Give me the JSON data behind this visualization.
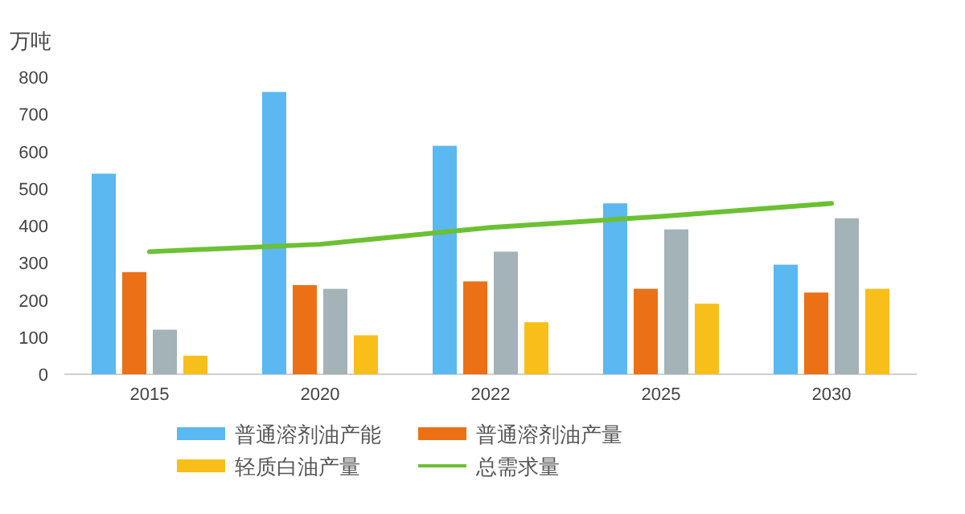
{
  "chart_data": {
    "type": "bar",
    "ylabel": "万吨",
    "categories": [
      "2015",
      "2020",
      "2022",
      "2025",
      "2030"
    ],
    "series": [
      {
        "name": "普通溶剂油产能",
        "color": "#5bb8f0",
        "values": [
          540,
          760,
          615,
          460,
          295
        ]
      },
      {
        "name": "普通溶剂油产量",
        "color": "#ec7016",
        "values": [
          275,
          240,
          250,
          230,
          220
        ]
      },
      {
        "color": "#a3b3b8",
        "values": [
          120,
          230,
          330,
          390,
          420
        ]
      },
      {
        "name": "轻质白油产量",
        "color": "#f8bf1a",
        "values": [
          50,
          105,
          140,
          190,
          230
        ]
      },
      {
        "name": "总需求量",
        "type": "line",
        "color": "#6cc033",
        "values": [
          330,
          350,
          395,
          425,
          460
        ]
      }
    ],
    "ylim": [
      0,
      800
    ],
    "yticks": [
      0,
      100,
      200,
      300,
      400,
      500,
      600,
      700,
      800
    ],
    "grid": false,
    "legend": "bottom"
  }
}
